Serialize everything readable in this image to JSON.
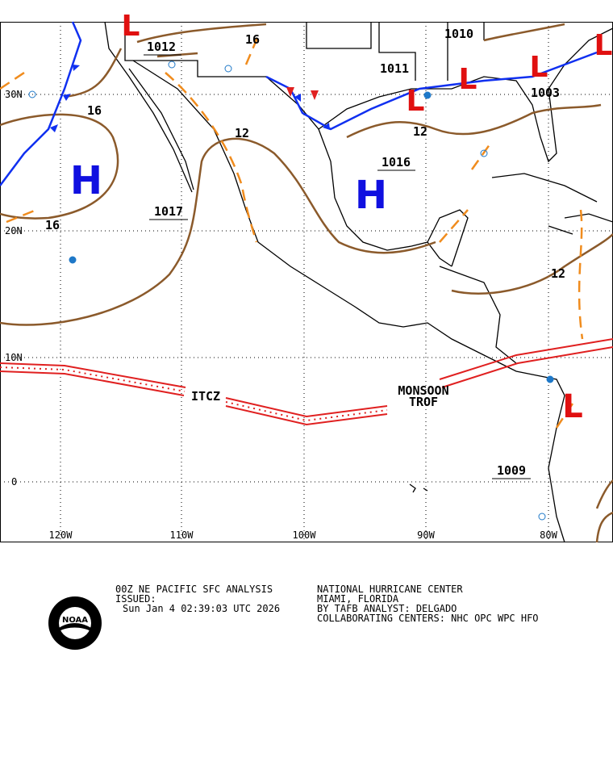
{
  "map": {
    "lat_labels": [
      "30N",
      "20N",
      "10N",
      "0"
    ],
    "lon_labels": [
      "120W",
      "110W",
      "100W",
      "90W",
      "80W"
    ],
    "highs": [
      "H",
      "H"
    ],
    "lows": [
      "L",
      "L",
      "L",
      "L",
      "L",
      "L"
    ],
    "isobar_labels": [
      "1012",
      "16",
      "1010",
      "1011",
      "1003",
      "16",
      "12",
      "12",
      "1016",
      "1017",
      "16",
      "12",
      "1009"
    ],
    "features": [
      "ITCZ",
      "MONSOON",
      "TROF"
    ]
  },
  "footer": {
    "product": "00Z NE PACIFIC SFC ANALYSIS",
    "issued": "ISSUED:",
    "timestamp": "Sun Jan 4 02:39:03 UTC 2026",
    "center": "NATIONAL HURRICANE CENTER",
    "location": "MIAMI, FLORIDA",
    "analyst": "BY TAFB ANALYST: DELGADO",
    "collaborating": "COLLABORATING CENTERS: NHC OPC WPC HFO",
    "logo": "NOAA"
  }
}
